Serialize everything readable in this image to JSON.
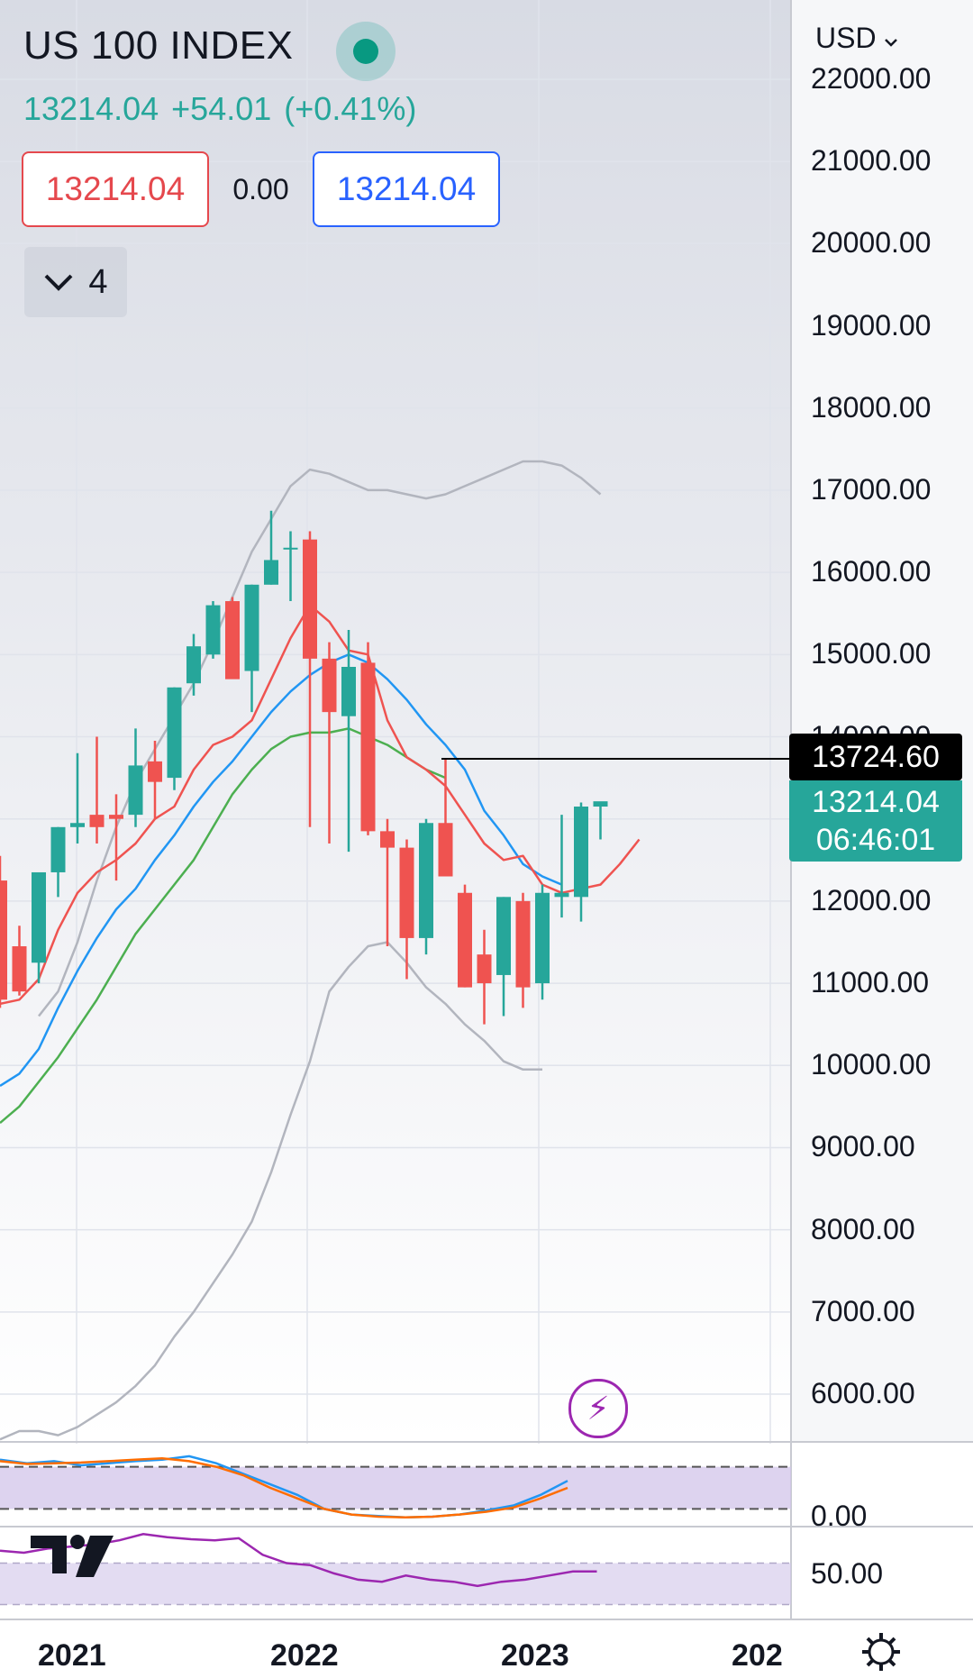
{
  "header": {
    "title": "US 100 INDEX",
    "last_price": "13214.04",
    "change": "+54.01",
    "change_pct": "(+0.41%)",
    "sell_price": "13214.04",
    "spread": "0.00",
    "buy_price": "13214.04",
    "indicator_count": "4",
    "currency": "USD",
    "status_color": "#089981"
  },
  "price_labels": {
    "highlighted": "13724.60",
    "current": "13214.04",
    "countdown": "06:46:01"
  },
  "icons": {
    "status": "status-dot-icon",
    "collapse": "chevron-down-icon",
    "currency_menu": "chevron-down-icon",
    "bolt": "lightning-icon",
    "logo": "tradingview-logo",
    "settings": "gear-icon"
  },
  "colors": {
    "up": "#26a69a",
    "down": "#ef5350",
    "ma_fast": "#ef5350",
    "ma_mid": "#2196f3",
    "ma_slow": "#4caf50",
    "bollinger": "#b2b5be",
    "stoch_k": "#2196f3",
    "stoch_d": "#ff6d00",
    "rsi": "#9c27b0",
    "band": "#d1c4e9"
  },
  "chart_data": {
    "type": "candlestick",
    "title": "US 100 INDEX",
    "y_ticks": [
      "22000.00",
      "21000.00",
      "20000.00",
      "19000.00",
      "18000.00",
      "17000.00",
      "16000.00",
      "15000.00",
      "14000.00",
      "13000.00",
      "12000.00",
      "11000.00",
      "10000.00",
      "9000.00",
      "8000.00",
      "7000.00",
      "6000.00"
    ],
    "ylim": [
      5450,
      22050
    ],
    "x_ticks": [
      "2021",
      "2022",
      "2023",
      "202"
    ],
    "horizontal_line": 13724.6,
    "candles": [
      {
        "o": 12250,
        "h": 12550,
        "l": 10700,
        "c": 10800
      },
      {
        "o": 11450,
        "h": 11700,
        "l": 10850,
        "c": 10900
      },
      {
        "o": 11250,
        "h": 12350,
        "l": 11000,
        "c": 12350
      },
      {
        "o": 12350,
        "h": 12900,
        "l": 12050,
        "c": 12900
      },
      {
        "o": 12900,
        "h": 13800,
        "l": 12700,
        "c": 12950
      },
      {
        "o": 13050,
        "h": 14000,
        "l": 12700,
        "c": 12900
      },
      {
        "o": 13050,
        "h": 13300,
        "l": 12250,
        "c": 13000
      },
      {
        "o": 13050,
        "h": 14100,
        "l": 12900,
        "c": 13650
      },
      {
        "o": 13700,
        "h": 13950,
        "l": 13000,
        "c": 13450
      },
      {
        "o": 13500,
        "h": 14600,
        "l": 13350,
        "c": 14600
      },
      {
        "o": 14650,
        "h": 15250,
        "l": 14500,
        "c": 15100
      },
      {
        "o": 15000,
        "h": 15650,
        "l": 14950,
        "c": 15600
      },
      {
        "o": 15650,
        "h": 15700,
        "l": 14750,
        "c": 14700
      },
      {
        "o": 14800,
        "h": 15850,
        "l": 14300,
        "c": 15850
      },
      {
        "o": 15850,
        "h": 16750,
        "l": 15850,
        "c": 16150
      },
      {
        "o": 16300,
        "h": 16500,
        "l": 15650,
        "c": 16300
      },
      {
        "o": 16400,
        "h": 16500,
        "l": 12900,
        "c": 14950
      },
      {
        "o": 14950,
        "h": 15150,
        "l": 12700,
        "c": 14300
      },
      {
        "o": 14250,
        "h": 15300,
        "l": 12600,
        "c": 14850
      },
      {
        "o": 14900,
        "h": 15150,
        "l": 12800,
        "c": 12850
      },
      {
        "o": 12850,
        "h": 13000,
        "l": 11450,
        "c": 12650
      },
      {
        "o": 12650,
        "h": 12750,
        "l": 11050,
        "c": 11550
      },
      {
        "o": 11550,
        "h": 13000,
        "l": 11350,
        "c": 12950
      },
      {
        "o": 12950,
        "h": 13724.6,
        "l": 12300,
        "c": 12300
      },
      {
        "o": 12100,
        "h": 12200,
        "l": 10950,
        "c": 10950
      },
      {
        "o": 11350,
        "h": 11650,
        "l": 10500,
        "c": 11000
      },
      {
        "o": 11100,
        "h": 12050,
        "l": 10600,
        "c": 12050
      },
      {
        "o": 12000,
        "h": 12100,
        "l": 10700,
        "c": 10950
      },
      {
        "o": 11000,
        "h": 12200,
        "l": 10800,
        "c": 12100
      },
      {
        "o": 12050,
        "h": 13050,
        "l": 11800,
        "c": 12100
      },
      {
        "o": 12050,
        "h": 13200,
        "l": 11750,
        "c": 13150
      },
      {
        "o": 13150,
        "h": 13200,
        "l": 12750,
        "c": 13214.04
      }
    ],
    "ma_fast": [
      10750,
      10800,
      11050,
      11650,
      12100,
      12350,
      12500,
      12700,
      13000,
      13150,
      13600,
      13900,
      14000,
      14200,
      14700,
      15200,
      15600,
      15400,
      15050,
      15000,
      14200,
      13750,
      13600,
      13400,
      13050,
      12700,
      12500,
      12550,
      12200,
      12100,
      12150,
      12200,
      12450,
      12750
    ],
    "ma_mid": [
      9750,
      9900,
      10200,
      10700,
      11150,
      11550,
      11900,
      12150,
      12500,
      12800,
      13150,
      13450,
      13700,
      14000,
      14300,
      14550,
      14750,
      14900,
      15000,
      14900,
      14700,
      14450,
      14150,
      13900,
      13600,
      13100,
      12800,
      12450,
      12300,
      12200
    ],
    "ma_slow": [
      9300,
      9500,
      9800,
      10100,
      10450,
      10800,
      11200,
      11600,
      11900,
      12200,
      12500,
      12900,
      13300,
      13600,
      13850,
      14000,
      14050,
      14050,
      14100,
      14000,
      13900,
      13750,
      13600,
      13500
    ],
    "bb_upper": [
      10600,
      10900,
      11500,
      12250,
      12900,
      13450,
      13850,
      14250,
      14650,
      15150,
      15700,
      16250,
      16650,
      17050,
      17250,
      17200,
      17100,
      17000,
      17000,
      16950,
      16900,
      16950,
      17050,
      17150,
      17250,
      17350,
      17350,
      17300,
      17150,
      16950
    ],
    "bb_lower": [
      5450,
      5550,
      5550,
      5500,
      5600,
      5750,
      5900,
      6100,
      6350,
      6700,
      7000,
      7350,
      7700,
      8100,
      8700,
      9400,
      10050,
      10900,
      11200,
      11450,
      11500,
      11250,
      10950,
      10750,
      10500,
      10300,
      10050,
      9950,
      9950
    ],
    "stoch": {
      "band": [
        20,
        80
      ],
      "ylim": [
        0,
        100
      ],
      "tick": "0.00",
      "k": [
        90,
        85,
        88,
        82,
        85,
        88,
        90,
        95,
        85,
        70,
        55,
        40,
        20,
        12,
        10,
        8,
        9,
        12,
        18,
        25,
        40,
        60
      ],
      "d": [
        88,
        84,
        85,
        86,
        88,
        90,
        92,
        88,
        80,
        68,
        50,
        35,
        20,
        12,
        9,
        8,
        9,
        12,
        16,
        22,
        35,
        50
      ]
    },
    "rsi": {
      "band": [
        30,
        70
      ],
      "ylim": [
        20,
        100
      ],
      "tick": "50.00",
      "values": [
        82,
        80,
        84,
        86,
        88,
        92,
        98,
        95,
        93,
        92,
        94,
        78,
        70,
        68,
        60,
        54,
        52,
        58,
        54,
        52,
        48,
        52,
        54,
        58,
        62,
        62
      ]
    }
  }
}
